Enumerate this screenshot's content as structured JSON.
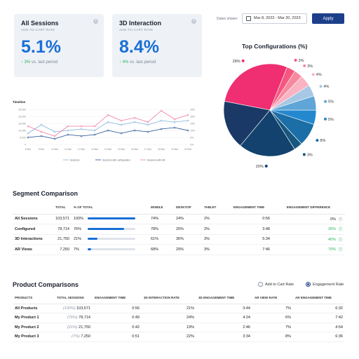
{
  "kpis": [
    {
      "title": "All Sessions",
      "subtitle": "ADD-TO-CART RATE",
      "value": "5.1%",
      "change": "3%",
      "change_suffix": "vs. last period"
    },
    {
      "title": "3D Interaction",
      "subtitle": "ADD-TO-CART RATE",
      "value": "8.4%",
      "change": "4%",
      "change_suffix": "vs. last period"
    }
  ],
  "header": {
    "dates_label": "Dates shown:",
    "date_range": "Mar 8, 2023 - Mar 20, 2023",
    "apply_label": "Apply"
  },
  "pie": {
    "title": "Top Configurations (%)",
    "slices": [
      {
        "label": "28%",
        "value": 28,
        "color": "#ef2f72"
      },
      {
        "label": "3%",
        "value": 3,
        "color": "#f4577f"
      },
      {
        "label": "3%",
        "value": 3,
        "color": "#f7899f"
      },
      {
        "label": "4%",
        "value": 4,
        "color": "#f9b3c3"
      },
      {
        "label": "4%",
        "value": 4,
        "color": "#a6c8e4"
      },
      {
        "label": "5%",
        "value": 5,
        "color": "#5fa5d7"
      },
      {
        "label": "5%",
        "value": 5,
        "color": "#2488cf"
      },
      {
        "label": "8%",
        "value": 8,
        "color": "#1b6ea6"
      },
      {
        "label": "3%",
        "value": 3,
        "color": "#17567f"
      },
      {
        "label": "20%",
        "value": 20,
        "color": "#12426d"
      },
      {
        "label": "17%",
        "value": 17,
        "color": "#1b3966"
      }
    ]
  },
  "timeline": {
    "title": "Timeline",
    "y_ticks": [
      "25,000",
      "20,000",
      "15,000",
      "10,000",
      "5,000",
      "0"
    ],
    "right_ticks": [
      "25%",
      "20%",
      "15%",
      "10%",
      "5%",
      "0%"
    ],
    "x_ticks": [
      "8 Mar",
      "9 Mar",
      "10 Mar",
      "11 Mar",
      "12 Mar",
      "13 Mar",
      "14 Mar",
      "15 Mar",
      "16 Mar",
      "17 Mar",
      "18 Mar",
      "19 Mar",
      "20 Mar"
    ],
    "legend": [
      "Sessions",
      "Sessions with configuration",
      "Sessions with AR"
    ]
  },
  "chart_data": {
    "type": "line",
    "title": "Timeline",
    "categories": [
      "8 Mar",
      "9 Mar",
      "10 Mar",
      "11 Mar",
      "12 Mar",
      "13 Mar",
      "14 Mar",
      "15 Mar",
      "16 Mar",
      "17 Mar",
      "18 Mar",
      "19 Mar",
      "20 Mar"
    ],
    "series": [
      {
        "name": "Sessions",
        "values": [
          8000,
          14000,
          9000,
          10000,
          11000,
          10000,
          16000,
          14000,
          16000,
          14000,
          17000,
          16000,
          17000
        ]
      },
      {
        "name": "Sessions with configuration",
        "values": [
          5000,
          6000,
          4000,
          7000,
          6000,
          7000,
          10000,
          8000,
          10000,
          9000,
          11000,
          12000,
          10000
        ]
      },
      {
        "name": "Sessions with AR",
        "values": [
          13000,
          9000,
          6000,
          13000,
          13000,
          13000,
          21000,
          17000,
          19000,
          16000,
          24000,
          18000,
          21000
        ]
      }
    ],
    "ylim": [
      0,
      25000
    ]
  },
  "segment": {
    "title": "Segment Comparison",
    "headers": [
      "",
      "TOTAL",
      "% OF TOTAL",
      "MOBILE",
      "DESKTOP",
      "TABLET",
      "ENGAGEMENT TIME",
      "ENGAGEMENT DIFFERENCE"
    ],
    "rows": [
      {
        "name": "All Sessions",
        "total": "103,571",
        "pct": "100%",
        "bar": 1.0,
        "mobile": "74%",
        "desktop": "24%",
        "tablet": "2%",
        "time": "0:56",
        "diff": "0%",
        "up": false
      },
      {
        "name": "Configured",
        "total": "78,714",
        "pct": "76%",
        "bar": 0.76,
        "mobile": "78%",
        "desktop": "20%",
        "tablet": "2%",
        "time": "3:48",
        "diff": "30%",
        "up": true
      },
      {
        "name": "3D Interactions",
        "total": "21,750",
        "pct": "21%",
        "bar": 0.21,
        "mobile": "61%",
        "desktop": "36%",
        "tablet": "3%",
        "time": "5:34",
        "diff": "40%",
        "up": true
      },
      {
        "name": "AR Views",
        "total": "7,250",
        "pct": "7%",
        "bar": 0.07,
        "mobile": "68%",
        "desktop": "29%",
        "tablet": "3%",
        "time": "7:46",
        "diff": "70%",
        "up": true
      }
    ]
  },
  "product": {
    "title": "Product Comparisons",
    "radio_a": "Add to Cart Rate",
    "radio_b": "Engagement Rate",
    "headers": [
      "PRODUCTS",
      "TOTAL SESSIONS",
      "ENGAGEMENT TIME",
      "3D INTERACTION RATE",
      "3D ENGAGEMENT TIME",
      "AR VIEW RATE",
      "AR ENGAGEMENT TIME"
    ],
    "rows": [
      {
        "name": "All Products",
        "pct": "(100%)",
        "total": "103,571",
        "time": "0:56",
        "rate3d": "21%",
        "time3d": "3:44",
        "ar": "7%",
        "timear": "6:32"
      },
      {
        "name": "My Product 1",
        "pct": "(76%)",
        "total": "78,714",
        "time": "0:49",
        "rate3d": "24%",
        "time3d": "4:24",
        "ar": "6%",
        "timear": "7:42"
      },
      {
        "name": "My Product 2",
        "pct": "(21%)",
        "total": "21,750",
        "time": "0:42",
        "rate3d": "19%",
        "time3d": "2:46",
        "ar": "7%",
        "timear": "4:54"
      },
      {
        "name": "My Product 3",
        "pct": "(7%)",
        "total": "7,250",
        "time": "0:51",
        "rate3d": "22%",
        "time3d": "3:34",
        "ar": "8%",
        "timear": "6:36"
      }
    ]
  }
}
